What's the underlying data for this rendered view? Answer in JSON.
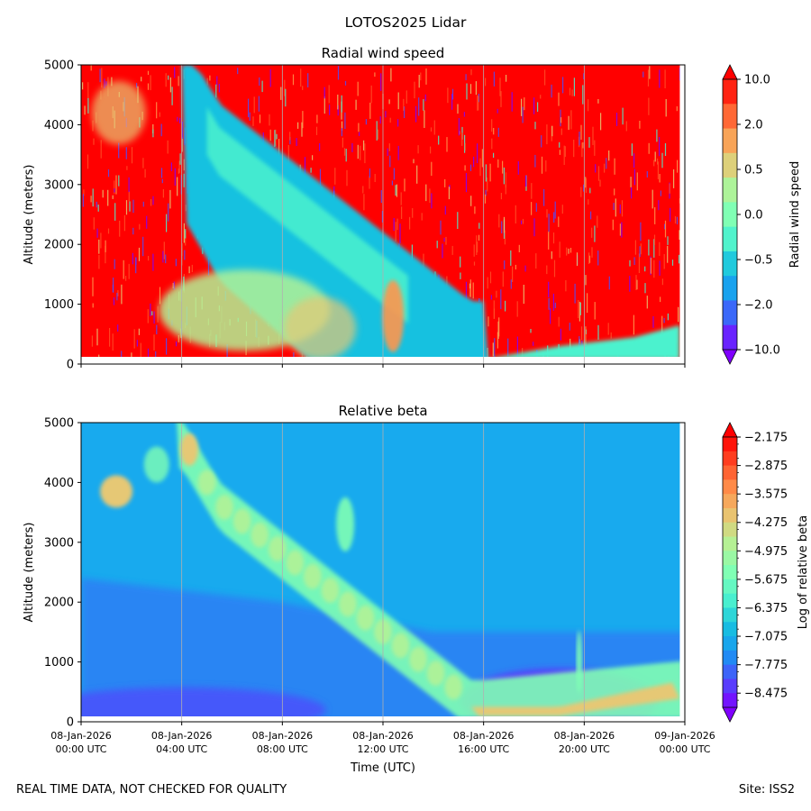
{
  "suptitle": "LOTOS2025 Lidar",
  "footer": {
    "left": "REAL TIME DATA, NOT CHECKED FOR QUALITY",
    "right": "Site: ISS2"
  },
  "chart_data": [
    {
      "type": "heatmap",
      "title": "Radial wind speed",
      "xlabel": "",
      "ylabel": "Altitude (meters)",
      "ylim": [
        0,
        5000
      ],
      "yticks": [
        0,
        1000,
        2000,
        3000,
        4000,
        5000
      ],
      "xticks": [],
      "grid": "vertical lines at x ticks",
      "colormap": "rainbow",
      "colorbar": {
        "label": "Radial wind speed",
        "ticks": [
          "10.0",
          "2.0",
          "0.5",
          "0.0",
          "−0.5",
          "−2.0",
          "−10.0"
        ],
        "levels": 11,
        "extend": "both",
        "layout": "levels-and-labels"
      },
      "description": "Mostly positive (red) noisy values with a negative/near-zero (cyan) band descending from ~5000 m at 04:00 to ~0 m near 16:00"
    },
    {
      "type": "heatmap",
      "title": "Relative beta",
      "xlabel": "Time (UTC)",
      "ylabel": "Altitude (meters)",
      "ylim": [
        0,
        5000
      ],
      "yticks": [
        0,
        1000,
        2000,
        3000,
        4000,
        5000
      ],
      "xticks": [
        [
          "08-Jan-2026",
          "00:00 UTC"
        ],
        [
          "08-Jan-2026",
          "04:00 UTC"
        ],
        [
          "08-Jan-2026",
          "08:00 UTC"
        ],
        [
          "08-Jan-2026",
          "12:00 UTC"
        ],
        [
          "08-Jan-2026",
          "16:00 UTC"
        ],
        [
          "08-Jan-2026",
          "20:00 UTC"
        ],
        [
          "09-Jan-2026",
          "00:00 UTC"
        ]
      ],
      "grid": "vertical lines at x ticks",
      "colormap": "rainbow",
      "colorbar": {
        "label": "Log of relative beta",
        "ticks": [
          "−2.175",
          "−2.875",
          "−3.575",
          "−4.275",
          "−4.975",
          "−5.675",
          "−6.375",
          "−7.075",
          "−7.775",
          "−8.475"
        ],
        "vmax": -2.175,
        "vmin": -8.825,
        "levels": 19,
        "extend": "both",
        "layout": "levels-and-labels"
      },
      "description": "Background ~ -7.4 (blue), elevated green/yellow aerosol layer descending from ~4800 m at 04:00 to ~200 m near 16:00, boundary layer ~300-700 m after 20:00"
    }
  ]
}
